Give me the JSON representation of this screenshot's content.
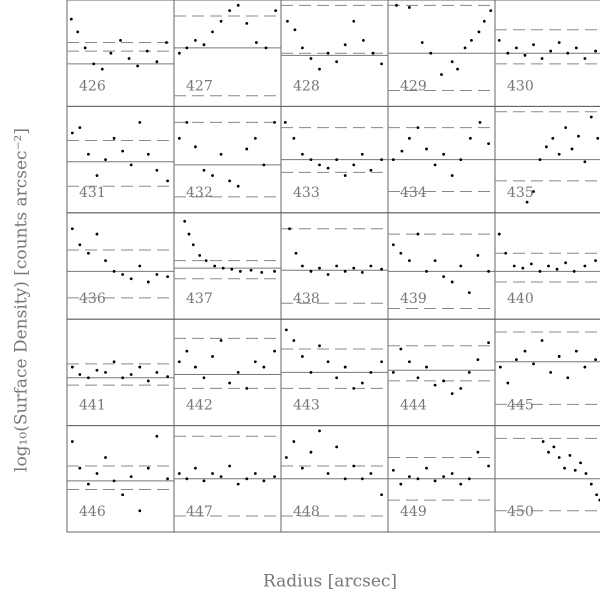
{
  "xlabel": "Radius [arcsec]",
  "ylabel": "log₁₀(Surface Density) [counts arcsec⁻²]",
  "chart_data": [
    {
      "type": "scatter",
      "title": "426",
      "x": [
        0.04,
        0.1,
        0.17,
        0.25,
        0.33,
        0.41,
        0.5,
        0.58,
        0.66,
        0.75,
        0.84,
        0.93
      ],
      "y": [
        0.82,
        0.7,
        0.55,
        0.4,
        0.35,
        0.5,
        0.62,
        0.45,
        0.38,
        0.52,
        0.42,
        0.6
      ],
      "xlim": [
        0,
        1
      ],
      "ylim": [
        0,
        1
      ],
      "hline": 0.4,
      "dashed": [
        0.52,
        0.6
      ]
    },
    {
      "type": "scatter",
      "title": "427",
      "x": [
        0.05,
        0.12,
        0.2,
        0.28,
        0.36,
        0.44,
        0.52,
        0.6,
        0.68,
        0.77,
        0.86,
        0.95
      ],
      "y": [
        0.5,
        0.55,
        0.62,
        0.58,
        0.7,
        0.8,
        0.9,
        0.95,
        0.78,
        0.6,
        0.55,
        0.9
      ],
      "xlim": [
        0,
        1
      ],
      "ylim": [
        0,
        1
      ],
      "hline": 0.55,
      "dashed": [
        0.1,
        0.85
      ]
    },
    {
      "type": "scatter",
      "title": "428",
      "x": [
        0.06,
        0.13,
        0.2,
        0.28,
        0.36,
        0.44,
        0.52,
        0.6,
        0.68,
        0.77,
        0.86,
        0.94
      ],
      "y": [
        0.8,
        0.72,
        0.55,
        0.45,
        0.35,
        0.5,
        0.42,
        0.58,
        0.8,
        0.62,
        0.5,
        0.4
      ],
      "xlim": [
        0,
        1
      ],
      "ylim": [
        0,
        1
      ],
      "hline": 0.48,
      "dashed": [
        0.5,
        0.95
      ]
    },
    {
      "type": "scatter",
      "title": "429",
      "x": [
        0.08,
        0.2,
        0.32,
        0.4,
        0.5,
        0.6,
        0.65,
        0.72,
        0.78,
        0.85,
        0.9,
        0.96
      ],
      "y": [
        0.95,
        0.93,
        0.6,
        0.5,
        0.3,
        0.42,
        0.35,
        0.55,
        0.62,
        0.7,
        0.8,
        0.9
      ],
      "xlim": [
        0,
        1
      ],
      "ylim": [
        0,
        1
      ],
      "hline": 0.5,
      "dashed": [
        0.15,
        0.95
      ]
    },
    {
      "type": "scatter",
      "title": "430",
      "x": [
        0.04,
        0.12,
        0.2,
        0.28,
        0.36,
        0.44,
        0.52,
        0.6,
        0.68,
        0.76,
        0.84,
        0.94
      ],
      "y": [
        0.62,
        0.5,
        0.55,
        0.48,
        0.58,
        0.45,
        0.52,
        0.6,
        0.5,
        0.55,
        0.45,
        0.52
      ],
      "xlim": [
        0,
        1
      ],
      "ylim": [
        0,
        1
      ],
      "hline": 0.5,
      "dashed": [
        0.4,
        0.72
      ]
    },
    {
      "type": "scatter",
      "title": "431",
      "x": [
        0.05,
        0.12,
        0.2,
        0.28,
        0.36,
        0.44,
        0.52,
        0.6,
        0.68,
        0.76,
        0.84,
        0.94
      ],
      "y": [
        0.75,
        0.8,
        0.55,
        0.35,
        0.5,
        0.7,
        0.58,
        0.45,
        0.85,
        0.55,
        0.4,
        0.3
      ],
      "xlim": [
        0,
        1
      ],
      "ylim": [
        0,
        1
      ],
      "hline": 0.48,
      "dashed": [
        0.25,
        0.68
      ]
    },
    {
      "type": "scatter",
      "title": "432",
      "x": [
        0.05,
        0.12,
        0.2,
        0.28,
        0.36,
        0.44,
        0.52,
        0.6,
        0.68,
        0.76,
        0.84,
        0.94
      ],
      "y": [
        0.7,
        0.85,
        0.62,
        0.4,
        0.35,
        0.55,
        0.3,
        0.25,
        0.6,
        0.7,
        0.45,
        0.85
      ],
      "xlim": [
        0,
        1
      ],
      "ylim": [
        0,
        1
      ],
      "hline": 0.45,
      "dashed": [
        0.15,
        0.85
      ]
    },
    {
      "type": "scatter",
      "title": "433",
      "x": [
        0.04,
        0.12,
        0.2,
        0.28,
        0.36,
        0.44,
        0.52,
        0.6,
        0.68,
        0.76,
        0.84,
        0.94
      ],
      "y": [
        0.85,
        0.7,
        0.55,
        0.5,
        0.45,
        0.42,
        0.5,
        0.35,
        0.45,
        0.55,
        0.4,
        0.5
      ],
      "xlim": [
        0,
        1
      ],
      "ylim": [
        0,
        1
      ],
      "hline": 0.5,
      "dashed": [
        0.38,
        0.8
      ]
    },
    {
      "type": "scatter",
      "title": "434",
      "x": [
        0.05,
        0.13,
        0.2,
        0.28,
        0.36,
        0.44,
        0.52,
        0.6,
        0.68,
        0.77,
        0.86,
        0.94
      ],
      "y": [
        0.5,
        0.58,
        0.7,
        0.8,
        0.6,
        0.45,
        0.55,
        0.35,
        0.5,
        0.7,
        0.85,
        0.65
      ],
      "xlim": [
        0,
        1
      ],
      "ylim": [
        0,
        1
      ],
      "hline": 0.5,
      "dashed": [
        0.2,
        0.8
      ]
    },
    {
      "type": "scatter",
      "title": "435",
      "x": [
        0.3,
        0.36,
        0.42,
        0.48,
        0.54,
        0.6,
        0.66,
        0.72,
        0.78,
        0.84,
        0.9,
        0.96
      ],
      "y": [
        0.1,
        0.2,
        0.5,
        0.62,
        0.7,
        0.55,
        0.8,
        0.6,
        0.72,
        0.48,
        0.9,
        0.7
      ],
      "xlim": [
        0,
        1
      ],
      "ylim": [
        0,
        1
      ],
      "hline": 0.5,
      "dashed": [
        0.3,
        0.95
      ]
    },
    {
      "type": "scatter",
      "title": "436",
      "x": [
        0.05,
        0.12,
        0.2,
        0.28,
        0.36,
        0.44,
        0.52,
        0.6,
        0.68,
        0.76,
        0.84,
        0.94
      ],
      "y": [
        0.85,
        0.7,
        0.62,
        0.8,
        0.55,
        0.45,
        0.42,
        0.38,
        0.5,
        0.35,
        0.42,
        0.4
      ],
      "xlim": [
        0,
        1
      ],
      "ylim": [
        0,
        1
      ],
      "hline": 0.45,
      "dashed": [
        0.2,
        0.65
      ]
    },
    {
      "type": "scatter",
      "title": "437",
      "x": [
        0.1,
        0.14,
        0.18,
        0.24,
        0.3,
        0.38,
        0.46,
        0.54,
        0.62,
        0.72,
        0.82,
        0.94
      ],
      "y": [
        0.92,
        0.8,
        0.7,
        0.6,
        0.55,
        0.5,
        0.48,
        0.47,
        0.45,
        0.46,
        0.44,
        0.45
      ],
      "xlim": [
        0,
        1
      ],
      "ylim": [
        0,
        1
      ],
      "hline": 0.48,
      "dashed": [
        0.38,
        0.55
      ]
    },
    {
      "type": "scatter",
      "title": "438",
      "x": [
        0.08,
        0.14,
        0.2,
        0.28,
        0.36,
        0.44,
        0.52,
        0.6,
        0.68,
        0.76,
        0.84,
        0.94
      ],
      "y": [
        0.85,
        0.62,
        0.5,
        0.45,
        0.48,
        0.42,
        0.5,
        0.45,
        0.48,
        0.44,
        0.5,
        0.47
      ],
      "xlim": [
        0,
        1
      ],
      "ylim": [
        0,
        1
      ],
      "hline": 0.46,
      "dashed": [
        0.15,
        0.85
      ]
    },
    {
      "type": "scatter",
      "title": "439",
      "x": [
        0.05,
        0.12,
        0.2,
        0.28,
        0.36,
        0.44,
        0.52,
        0.6,
        0.68,
        0.76,
        0.84,
        0.94
      ],
      "y": [
        0.7,
        0.62,
        0.55,
        0.8,
        0.45,
        0.55,
        0.4,
        0.35,
        0.5,
        0.25,
        0.6,
        0.45
      ],
      "xlim": [
        0,
        1
      ],
      "ylim": [
        0,
        1
      ],
      "hline": 0.45,
      "dashed": [
        0.1,
        0.8
      ]
    },
    {
      "type": "scatter",
      "title": "440",
      "x": [
        0.04,
        0.1,
        0.18,
        0.26,
        0.34,
        0.42,
        0.5,
        0.58,
        0.66,
        0.74,
        0.84,
        0.94
      ],
      "y": [
        0.8,
        0.62,
        0.5,
        0.48,
        0.52,
        0.45,
        0.5,
        0.47,
        0.53,
        0.45,
        0.5,
        0.55
      ],
      "xlim": [
        0,
        1
      ],
      "ylim": [
        0,
        1
      ],
      "hline": 0.45,
      "dashed": [
        0.35,
        0.62
      ]
    },
    {
      "type": "scatter",
      "title": "441",
      "x": [
        0.05,
        0.12,
        0.2,
        0.28,
        0.36,
        0.44,
        0.52,
        0.6,
        0.68,
        0.76,
        0.84,
        0.94
      ],
      "y": [
        0.55,
        0.48,
        0.45,
        0.52,
        0.5,
        0.6,
        0.45,
        0.48,
        0.55,
        0.42,
        0.5,
        0.46
      ],
      "xlim": [
        0,
        1
      ],
      "ylim": [
        0,
        1
      ],
      "hline": 0.45,
      "dashed": [
        0.38,
        0.58
      ]
    },
    {
      "type": "scatter",
      "title": "442",
      "x": [
        0.05,
        0.12,
        0.2,
        0.28,
        0.36,
        0.44,
        0.52,
        0.6,
        0.68,
        0.76,
        0.84,
        0.94
      ],
      "y": [
        0.6,
        0.7,
        0.55,
        0.45,
        0.65,
        0.8,
        0.4,
        0.5,
        0.35,
        0.6,
        0.55,
        0.7
      ],
      "xlim": [
        0,
        1
      ],
      "ylim": [
        0,
        1
      ],
      "hline": 0.48,
      "dashed": [
        0.35,
        0.82
      ]
    },
    {
      "type": "scatter",
      "title": "443",
      "x": [
        0.05,
        0.12,
        0.2,
        0.28,
        0.36,
        0.44,
        0.52,
        0.6,
        0.68,
        0.76,
        0.84,
        0.94
      ],
      "y": [
        0.9,
        0.8,
        0.65,
        0.5,
        0.75,
        0.6,
        0.45,
        0.55,
        0.35,
        0.4,
        0.5,
        0.6
      ],
      "xlim": [
        0,
        1
      ],
      "ylim": [
        0,
        1
      ],
      "hline": 0.5,
      "dashed": [
        0.35,
        0.72
      ]
    },
    {
      "type": "scatter",
      "title": "444",
      "x": [
        0.05,
        0.12,
        0.2,
        0.28,
        0.36,
        0.44,
        0.52,
        0.6,
        0.68,
        0.76,
        0.84,
        0.94
      ],
      "y": [
        0.5,
        0.72,
        0.6,
        0.45,
        0.55,
        0.38,
        0.42,
        0.3,
        0.35,
        0.5,
        0.62,
        0.78
      ],
      "xlim": [
        0,
        1
      ],
      "ylim": [
        0,
        1
      ],
      "hline": 0.52,
      "dashed": [
        0.42,
        0.75
      ]
    },
    {
      "type": "scatter",
      "title": "445",
      "x": [
        0.05,
        0.12,
        0.2,
        0.28,
        0.36,
        0.44,
        0.52,
        0.6,
        0.68,
        0.76,
        0.84,
        0.94
      ],
      "y": [
        0.55,
        0.4,
        0.62,
        0.7,
        0.58,
        0.8,
        0.5,
        0.65,
        0.45,
        0.7,
        0.55,
        0.62
      ],
      "xlim": [
        0,
        1
      ],
      "ylim": [
        0,
        1
      ],
      "hline": 0.6,
      "dashed": [
        0.2,
        0.88
      ]
    },
    {
      "type": "scatter",
      "title": "446",
      "x": [
        0.05,
        0.12,
        0.2,
        0.28,
        0.36,
        0.44,
        0.52,
        0.6,
        0.68,
        0.76,
        0.84,
        0.94
      ],
      "y": [
        0.85,
        0.6,
        0.45,
        0.55,
        0.7,
        0.48,
        0.35,
        0.52,
        0.2,
        0.6,
        0.9,
        0.5
      ],
      "xlim": [
        0,
        1
      ],
      "ylim": [
        0,
        1
      ],
      "hline": 0.48,
      "dashed": [
        0.4,
        0.62
      ]
    },
    {
      "type": "scatter",
      "title": "447",
      "x": [
        0.05,
        0.12,
        0.2,
        0.28,
        0.36,
        0.44,
        0.52,
        0.6,
        0.68,
        0.76,
        0.84,
        0.94
      ],
      "y": [
        0.55,
        0.5,
        0.6,
        0.48,
        0.55,
        0.52,
        0.62,
        0.45,
        0.5,
        0.55,
        0.48,
        0.52
      ],
      "xlim": [
        0,
        1
      ],
      "ylim": [
        0,
        1
      ],
      "hline": 0.5,
      "dashed": [
        0.15,
        0.9
      ]
    },
    {
      "type": "scatter",
      "title": "448",
      "x": [
        0.05,
        0.12,
        0.2,
        0.28,
        0.36,
        0.44,
        0.52,
        0.6,
        0.68,
        0.76,
        0.84,
        0.94
      ],
      "y": [
        0.7,
        0.85,
        0.6,
        0.75,
        0.95,
        0.55,
        0.8,
        0.5,
        0.62,
        0.5,
        0.55,
        0.35
      ],
      "xlim": [
        0,
        1
      ],
      "ylim": [
        0,
        1
      ],
      "hline": 0.5,
      "dashed": [
        0.15,
        0.62
      ]
    },
    {
      "type": "scatter",
      "title": "449",
      "x": [
        0.05,
        0.12,
        0.2,
        0.28,
        0.36,
        0.44,
        0.52,
        0.6,
        0.68,
        0.76,
        0.84,
        0.94
      ],
      "y": [
        0.58,
        0.45,
        0.52,
        0.5,
        0.6,
        0.48,
        0.52,
        0.55,
        0.45,
        0.5,
        0.75,
        0.62
      ],
      "xlim": [
        0,
        1
      ],
      "ylim": [
        0,
        1
      ],
      "hline": 0.5,
      "dashed": [
        0.3,
        0.7
      ]
    },
    {
      "type": "scatter",
      "title": "450",
      "x": [
        0.45,
        0.5,
        0.55,
        0.6,
        0.65,
        0.7,
        0.75,
        0.8,
        0.85,
        0.9,
        0.95,
        0.98
      ],
      "y": [
        0.85,
        0.75,
        0.8,
        0.7,
        0.6,
        0.72,
        0.58,
        0.65,
        0.55,
        0.45,
        0.35,
        0.3
      ],
      "xlim": [
        0,
        1
      ],
      "ylim": [
        0,
        1
      ],
      "hline": 0.5,
      "dashed": [
        0.2,
        0.88
      ]
    }
  ]
}
